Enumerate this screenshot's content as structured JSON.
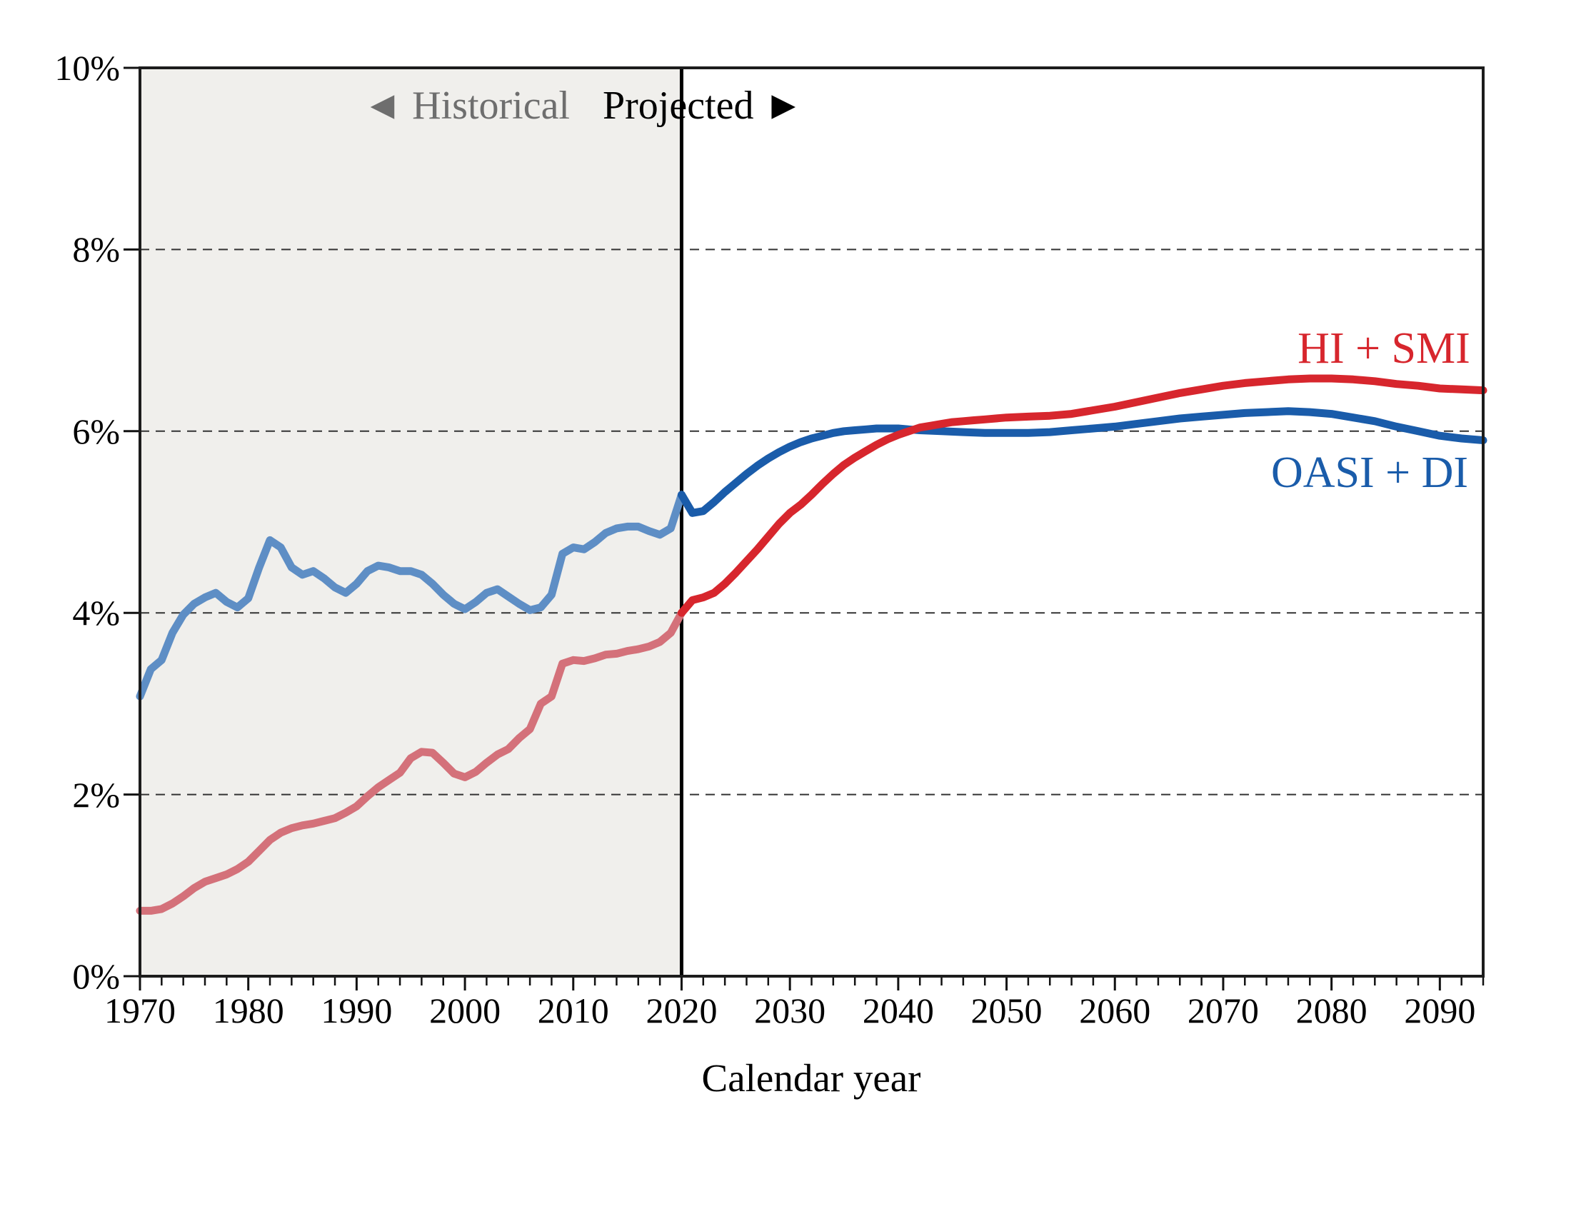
{
  "chart_data": {
    "type": "line",
    "title": "",
    "xlabel": "Calendar year",
    "x_axis": {
      "range": [
        1970,
        2094
      ],
      "tick_labels": [
        "1970",
        "1980",
        "1990",
        "2000",
        "2010",
        "2020",
        "2030",
        "2040",
        "2050",
        "2060",
        "2070",
        "2080",
        "2090"
      ],
      "major_tick_step": 10,
      "minor_tick_step": 2
    },
    "y_axis": {
      "range_percent": [
        0,
        10
      ],
      "tick_labels": [
        "0%",
        "2%",
        "4%",
        "6%",
        "8%",
        "10%"
      ],
      "tick_step_percent": 2,
      "gridlines_at_percent": [
        2,
        4,
        6,
        8
      ],
      "grid_style": "dashed"
    },
    "divider_year": 2020,
    "historical_region": {
      "from": 1970,
      "to": 2020,
      "fill": "#f0efec"
    },
    "annotations": {
      "historical": {
        "text": "◄ Historical",
        "color": "#6e6e6e"
      },
      "projected": {
        "text": "Projected ►",
        "color": "#000000"
      },
      "hi_smi": {
        "text": "HI + SMI",
        "color": "#d7262d"
      },
      "oasi_di": {
        "text": "OASI + DI",
        "color": "#1a5caa"
      }
    },
    "series": [
      {
        "name": "OASI + DI",
        "historical_color": "#5e8ec5",
        "projected_color": "#1a5caa",
        "historical_points": [
          [
            1970,
            3.08
          ],
          [
            1971,
            3.38
          ],
          [
            1972,
            3.48
          ],
          [
            1973,
            3.78
          ],
          [
            1974,
            3.98
          ],
          [
            1975,
            4.1
          ],
          [
            1976,
            4.17
          ],
          [
            1977,
            4.22
          ],
          [
            1978,
            4.12
          ],
          [
            1979,
            4.06
          ],
          [
            1980,
            4.16
          ],
          [
            1981,
            4.5
          ],
          [
            1982,
            4.8
          ],
          [
            1983,
            4.72
          ],
          [
            1984,
            4.5
          ],
          [
            1985,
            4.42
          ],
          [
            1986,
            4.46
          ],
          [
            1987,
            4.38
          ],
          [
            1988,
            4.28
          ],
          [
            1989,
            4.22
          ],
          [
            1990,
            4.32
          ],
          [
            1991,
            4.46
          ],
          [
            1992,
            4.52
          ],
          [
            1993,
            4.5
          ],
          [
            1994,
            4.46
          ],
          [
            1995,
            4.46
          ],
          [
            1996,
            4.42
          ],
          [
            1997,
            4.32
          ],
          [
            1998,
            4.2
          ],
          [
            1999,
            4.1
          ],
          [
            2000,
            4.04
          ],
          [
            2001,
            4.12
          ],
          [
            2002,
            4.22
          ],
          [
            2003,
            4.26
          ],
          [
            2004,
            4.18
          ],
          [
            2005,
            4.1
          ],
          [
            2006,
            4.03
          ],
          [
            2007,
            4.06
          ],
          [
            2008,
            4.2
          ],
          [
            2009,
            4.65
          ],
          [
            2010,
            4.72
          ],
          [
            2011,
            4.7
          ],
          [
            2012,
            4.78
          ],
          [
            2013,
            4.88
          ],
          [
            2014,
            4.93
          ],
          [
            2015,
            4.95
          ],
          [
            2016,
            4.95
          ],
          [
            2017,
            4.9
          ],
          [
            2018,
            4.86
          ],
          [
            2019,
            4.93
          ],
          [
            2020,
            5.3
          ]
        ],
        "projected_points": [
          [
            2020,
            5.3
          ],
          [
            2021,
            5.1
          ],
          [
            2022,
            5.12
          ],
          [
            2023,
            5.22
          ],
          [
            2024,
            5.33
          ],
          [
            2025,
            5.43
          ],
          [
            2026,
            5.53
          ],
          [
            2027,
            5.62
          ],
          [
            2028,
            5.7
          ],
          [
            2029,
            5.77
          ],
          [
            2030,
            5.83
          ],
          [
            2031,
            5.88
          ],
          [
            2032,
            5.92
          ],
          [
            2033,
            5.95
          ],
          [
            2034,
            5.98
          ],
          [
            2035,
            6.0
          ],
          [
            2036,
            6.01
          ],
          [
            2037,
            6.02
          ],
          [
            2038,
            6.03
          ],
          [
            2039,
            6.03
          ],
          [
            2040,
            6.03
          ],
          [
            2041,
            6.02
          ],
          [
            2042,
            6.01
          ],
          [
            2044,
            6.0
          ],
          [
            2046,
            5.99
          ],
          [
            2048,
            5.98
          ],
          [
            2050,
            5.98
          ],
          [
            2052,
            5.98
          ],
          [
            2054,
            5.99
          ],
          [
            2056,
            6.01
          ],
          [
            2058,
            6.03
          ],
          [
            2060,
            6.05
          ],
          [
            2062,
            6.08
          ],
          [
            2064,
            6.11
          ],
          [
            2066,
            6.14
          ],
          [
            2068,
            6.16
          ],
          [
            2070,
            6.18
          ],
          [
            2072,
            6.2
          ],
          [
            2074,
            6.21
          ],
          [
            2076,
            6.22
          ],
          [
            2078,
            6.21
          ],
          [
            2080,
            6.19
          ],
          [
            2082,
            6.15
          ],
          [
            2084,
            6.11
          ],
          [
            2086,
            6.05
          ],
          [
            2088,
            6.0
          ],
          [
            2090,
            5.95
          ],
          [
            2092,
            5.92
          ],
          [
            2094,
            5.9
          ]
        ]
      },
      {
        "name": "HI + SMI",
        "historical_color": "#d4717a",
        "projected_color": "#d7262d",
        "historical_points": [
          [
            1970,
            0.72
          ],
          [
            1971,
            0.72
          ],
          [
            1972,
            0.74
          ],
          [
            1973,
            0.8
          ],
          [
            1974,
            0.88
          ],
          [
            1975,
            0.97
          ],
          [
            1976,
            1.04
          ],
          [
            1977,
            1.08
          ],
          [
            1978,
            1.12
          ],
          [
            1979,
            1.18
          ],
          [
            1980,
            1.26
          ],
          [
            1981,
            1.38
          ],
          [
            1982,
            1.5
          ],
          [
            1983,
            1.58
          ],
          [
            1984,
            1.63
          ],
          [
            1985,
            1.66
          ],
          [
            1986,
            1.68
          ],
          [
            1987,
            1.71
          ],
          [
            1988,
            1.74
          ],
          [
            1989,
            1.8
          ],
          [
            1990,
            1.87
          ],
          [
            1991,
            1.98
          ],
          [
            1992,
            2.08
          ],
          [
            1993,
            2.16
          ],
          [
            1994,
            2.24
          ],
          [
            1995,
            2.4
          ],
          [
            1996,
            2.47
          ],
          [
            1997,
            2.46
          ],
          [
            1998,
            2.35
          ],
          [
            1999,
            2.23
          ],
          [
            2000,
            2.19
          ],
          [
            2001,
            2.25
          ],
          [
            2002,
            2.35
          ],
          [
            2003,
            2.44
          ],
          [
            2004,
            2.5
          ],
          [
            2005,
            2.62
          ],
          [
            2006,
            2.72
          ],
          [
            2007,
            3.0
          ],
          [
            2008,
            3.08
          ],
          [
            2009,
            3.44
          ],
          [
            2010,
            3.48
          ],
          [
            2011,
            3.47
          ],
          [
            2012,
            3.5
          ],
          [
            2013,
            3.54
          ],
          [
            2014,
            3.55
          ],
          [
            2015,
            3.58
          ],
          [
            2016,
            3.6
          ],
          [
            2017,
            3.63
          ],
          [
            2018,
            3.68
          ],
          [
            2019,
            3.78
          ],
          [
            2020,
            4.0
          ]
        ],
        "projected_points": [
          [
            2020,
            4.0
          ],
          [
            2021,
            4.14
          ],
          [
            2022,
            4.17
          ],
          [
            2023,
            4.22
          ],
          [
            2024,
            4.32
          ],
          [
            2025,
            4.44
          ],
          [
            2026,
            4.57
          ],
          [
            2027,
            4.7
          ],
          [
            2028,
            4.84
          ],
          [
            2029,
            4.98
          ],
          [
            2030,
            5.1
          ],
          [
            2031,
            5.19
          ],
          [
            2032,
            5.3
          ],
          [
            2033,
            5.42
          ],
          [
            2034,
            5.53
          ],
          [
            2035,
            5.63
          ],
          [
            2036,
            5.71
          ],
          [
            2037,
            5.78
          ],
          [
            2038,
            5.85
          ],
          [
            2039,
            5.91
          ],
          [
            2040,
            5.96
          ],
          [
            2041,
            6.0
          ],
          [
            2042,
            6.04
          ],
          [
            2043,
            6.06
          ],
          [
            2044,
            6.08
          ],
          [
            2045,
            6.1
          ],
          [
            2046,
            6.11
          ],
          [
            2047,
            6.12
          ],
          [
            2048,
            6.13
          ],
          [
            2050,
            6.15
          ],
          [
            2052,
            6.16
          ],
          [
            2054,
            6.17
          ],
          [
            2056,
            6.19
          ],
          [
            2058,
            6.23
          ],
          [
            2060,
            6.27
          ],
          [
            2062,
            6.32
          ],
          [
            2064,
            6.37
          ],
          [
            2066,
            6.42
          ],
          [
            2068,
            6.46
          ],
          [
            2070,
            6.5
          ],
          [
            2072,
            6.53
          ],
          [
            2074,
            6.55
          ],
          [
            2076,
            6.57
          ],
          [
            2078,
            6.58
          ],
          [
            2080,
            6.58
          ],
          [
            2082,
            6.57
          ],
          [
            2084,
            6.55
          ],
          [
            2086,
            6.52
          ],
          [
            2088,
            6.5
          ],
          [
            2090,
            6.47
          ],
          [
            2092,
            6.46
          ],
          [
            2094,
            6.45
          ]
        ]
      }
    ],
    "style_colors": {
      "plot_border": "#1c1c1c",
      "gridline": "#333333",
      "divider": "#000000",
      "tick": "#111111"
    }
  }
}
